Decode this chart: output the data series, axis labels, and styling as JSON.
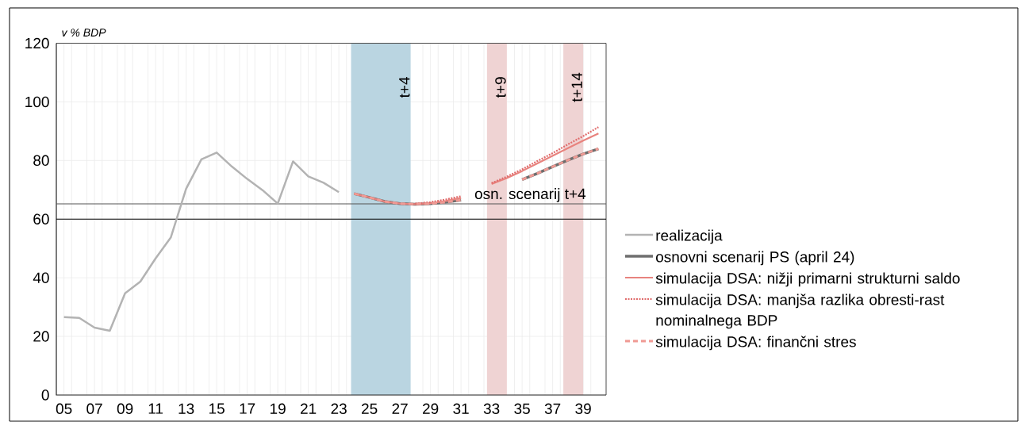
{
  "chart_data": {
    "type": "line",
    "ylabel": "v % BDP",
    "x": [
      2005,
      2006,
      2007,
      2008,
      2009,
      2010,
      2011,
      2012,
      2013,
      2014,
      2015,
      2016,
      2017,
      2018,
      2019,
      2020,
      2021,
      2022,
      2023,
      2024,
      2025,
      2026,
      2027,
      2028,
      2029,
      2030,
      2031,
      2032,
      2033,
      2034,
      2035,
      2036,
      2037,
      2038,
      2039,
      2040
    ],
    "series": [
      {
        "name": "realizacija",
        "color": "#b3b3b3",
        "line_style": "solid",
        "values": [
          26.6,
          26.3,
          23.0,
          21.9,
          34.7,
          38.7,
          46.6,
          53.8,
          70.4,
          80.4,
          82.7,
          77.9,
          73.7,
          69.9,
          65.3,
          79.7,
          74.6,
          72.4,
          69.2,
          null,
          null,
          null,
          null,
          null,
          null,
          null,
          null,
          null,
          null,
          null,
          null,
          null,
          null,
          null,
          null,
          null
        ]
      },
      {
        "name": "osnovni scenarij PS (april 24)",
        "color": "#6e6e6e",
        "line_style": "solid",
        "values": [
          null,
          null,
          null,
          null,
          null,
          null,
          null,
          null,
          null,
          null,
          null,
          null,
          null,
          null,
          null,
          null,
          null,
          null,
          null,
          68.7,
          67.4,
          66.0,
          65.3,
          65.1,
          65.3,
          65.8,
          66.5,
          null,
          null,
          null,
          73.5,
          75.6,
          77.9,
          80.1,
          82.2,
          84.0
        ]
      },
      {
        "name": "simulacija DSA: nižji primarni strukturni saldo",
        "color": "#e8837e",
        "line_style": "solid",
        "values": [
          null,
          null,
          null,
          null,
          null,
          null,
          null,
          null,
          null,
          null,
          null,
          null,
          null,
          null,
          null,
          null,
          null,
          null,
          null,
          68.7,
          67.4,
          66.0,
          65.3,
          65.1,
          65.4,
          66.2,
          67.2,
          null,
          72.0,
          74.0,
          76.4,
          79.0,
          81.6,
          84.2,
          86.8,
          89.2
        ]
      },
      {
        "name": "simulacija DSA: manjša razlika obresti-rast nominalnega BDP",
        "color": "#e06c6c",
        "line_style": "dotted",
        "values": [
          null,
          null,
          null,
          null,
          null,
          null,
          null,
          null,
          null,
          null,
          null,
          null,
          null,
          null,
          null,
          null,
          null,
          null,
          null,
          null,
          null,
          null,
          null,
          65.3,
          65.8,
          66.7,
          67.8,
          null,
          72.3,
          74.5,
          77.0,
          79.8,
          82.5,
          85.5,
          88.3,
          91.4
        ]
      },
      {
        "name": "simulacija DSA: finančni stres",
        "color": "#f09a94",
        "line_style": "dashed",
        "values": [
          null,
          null,
          null,
          null,
          null,
          null,
          null,
          null,
          null,
          null,
          null,
          null,
          null,
          null,
          null,
          null,
          null,
          null,
          null,
          68.7,
          67.4,
          66.0,
          65.3,
          65.1,
          65.3,
          65.8,
          66.5,
          null,
          null,
          null,
          73.5,
          75.6,
          77.9,
          80.1,
          82.2,
          84.0
        ]
      }
    ],
    "xlim": [
      2004.5,
      2040.5
    ],
    "xticks": [
      {
        "value": 2005,
        "label": "05"
      },
      {
        "value": 2005.5,
        "label": null
      },
      {
        "value": 2006.5,
        "label": null
      },
      {
        "value": 2007,
        "label": "07"
      },
      {
        "value": 2007.5,
        "label": null
      },
      {
        "value": 2008.5,
        "label": null
      },
      {
        "value": 2009,
        "label": "09"
      },
      {
        "value": 2009.5,
        "label": null
      },
      {
        "value": 2010.5,
        "label": null
      },
      {
        "value": 2011,
        "label": "11"
      },
      {
        "value": 2011.5,
        "label": null
      },
      {
        "value": 2012.5,
        "label": null
      },
      {
        "value": 2013,
        "label": "13"
      },
      {
        "value": 2013.5,
        "label": null
      },
      {
        "value": 2014.5,
        "label": null
      },
      {
        "value": 2015,
        "label": "15"
      },
      {
        "value": 2015.5,
        "label": null
      },
      {
        "value": 2016.5,
        "label": null
      },
      {
        "value": 2017,
        "label": "17"
      },
      {
        "value": 2017.5,
        "label": null
      },
      {
        "value": 2018.5,
        "label": null
      },
      {
        "value": 2019,
        "label": "19"
      },
      {
        "value": 2019.5,
        "label": null
      },
      {
        "value": 2020.5,
        "label": null
      },
      {
        "value": 2021,
        "label": "21"
      },
      {
        "value": 2021.5,
        "label": null
      },
      {
        "value": 2022.5,
        "label": null
      },
      {
        "value": 2023,
        "label": "23"
      },
      {
        "value": 2023.5,
        "label": null
      },
      {
        "value": 2024.5,
        "label": null
      },
      {
        "value": 2025,
        "label": "25"
      },
      {
        "value": 2025.5,
        "label": null
      },
      {
        "value": 2026.5,
        "label": null
      },
      {
        "value": 2027,
        "label": "27"
      },
      {
        "value": 2027.5,
        "label": null
      },
      {
        "value": 2028.5,
        "label": null
      },
      {
        "value": 2029,
        "label": "29"
      },
      {
        "value": 2029.5,
        "label": null
      },
      {
        "value": 2030.5,
        "label": null
      },
      {
        "value": 2031,
        "label": "31"
      },
      {
        "value": 2031.5,
        "label": null
      },
      {
        "value": 2032.5,
        "label": null
      },
      {
        "value": 2033,
        "label": "33"
      },
      {
        "value": 2033.5,
        "label": null
      },
      {
        "value": 2034.5,
        "label": null
      },
      {
        "value": 2035,
        "label": "35"
      },
      {
        "value": 2035.5,
        "label": null
      },
      {
        "value": 2036.5,
        "label": null
      },
      {
        "value": 2037,
        "label": "37"
      },
      {
        "value": 2037.5,
        "label": null
      },
      {
        "value": 2038.5,
        "label": null
      },
      {
        "value": 2039,
        "label": "39"
      },
      {
        "value": 2039.5,
        "label": null
      }
    ],
    "ylim": [
      0,
      120
    ],
    "yticks": [
      0,
      20,
      40,
      60,
      80,
      100,
      120
    ],
    "grid": true,
    "legend": "right",
    "ref_lines": [
      {
        "axis": "y",
        "value": 60,
        "color": "#000000"
      },
      {
        "axis": "y",
        "value": 65.2,
        "label": "osn. scenarij t+4",
        "color": "#555555"
      }
    ],
    "bands": [
      {
        "axis": "x",
        "from": 2023.8,
        "to": 2027.7,
        "label": "t+4",
        "color": "#bad5e1"
      },
      {
        "axis": "x",
        "from": 2032.7,
        "to": 2034.0,
        "label": "t+9",
        "color": "#efd3d3"
      },
      {
        "axis": "x",
        "from": 2037.7,
        "to": 2039.0,
        "label": "t+14",
        "color": "#efd3d3"
      }
    ]
  }
}
